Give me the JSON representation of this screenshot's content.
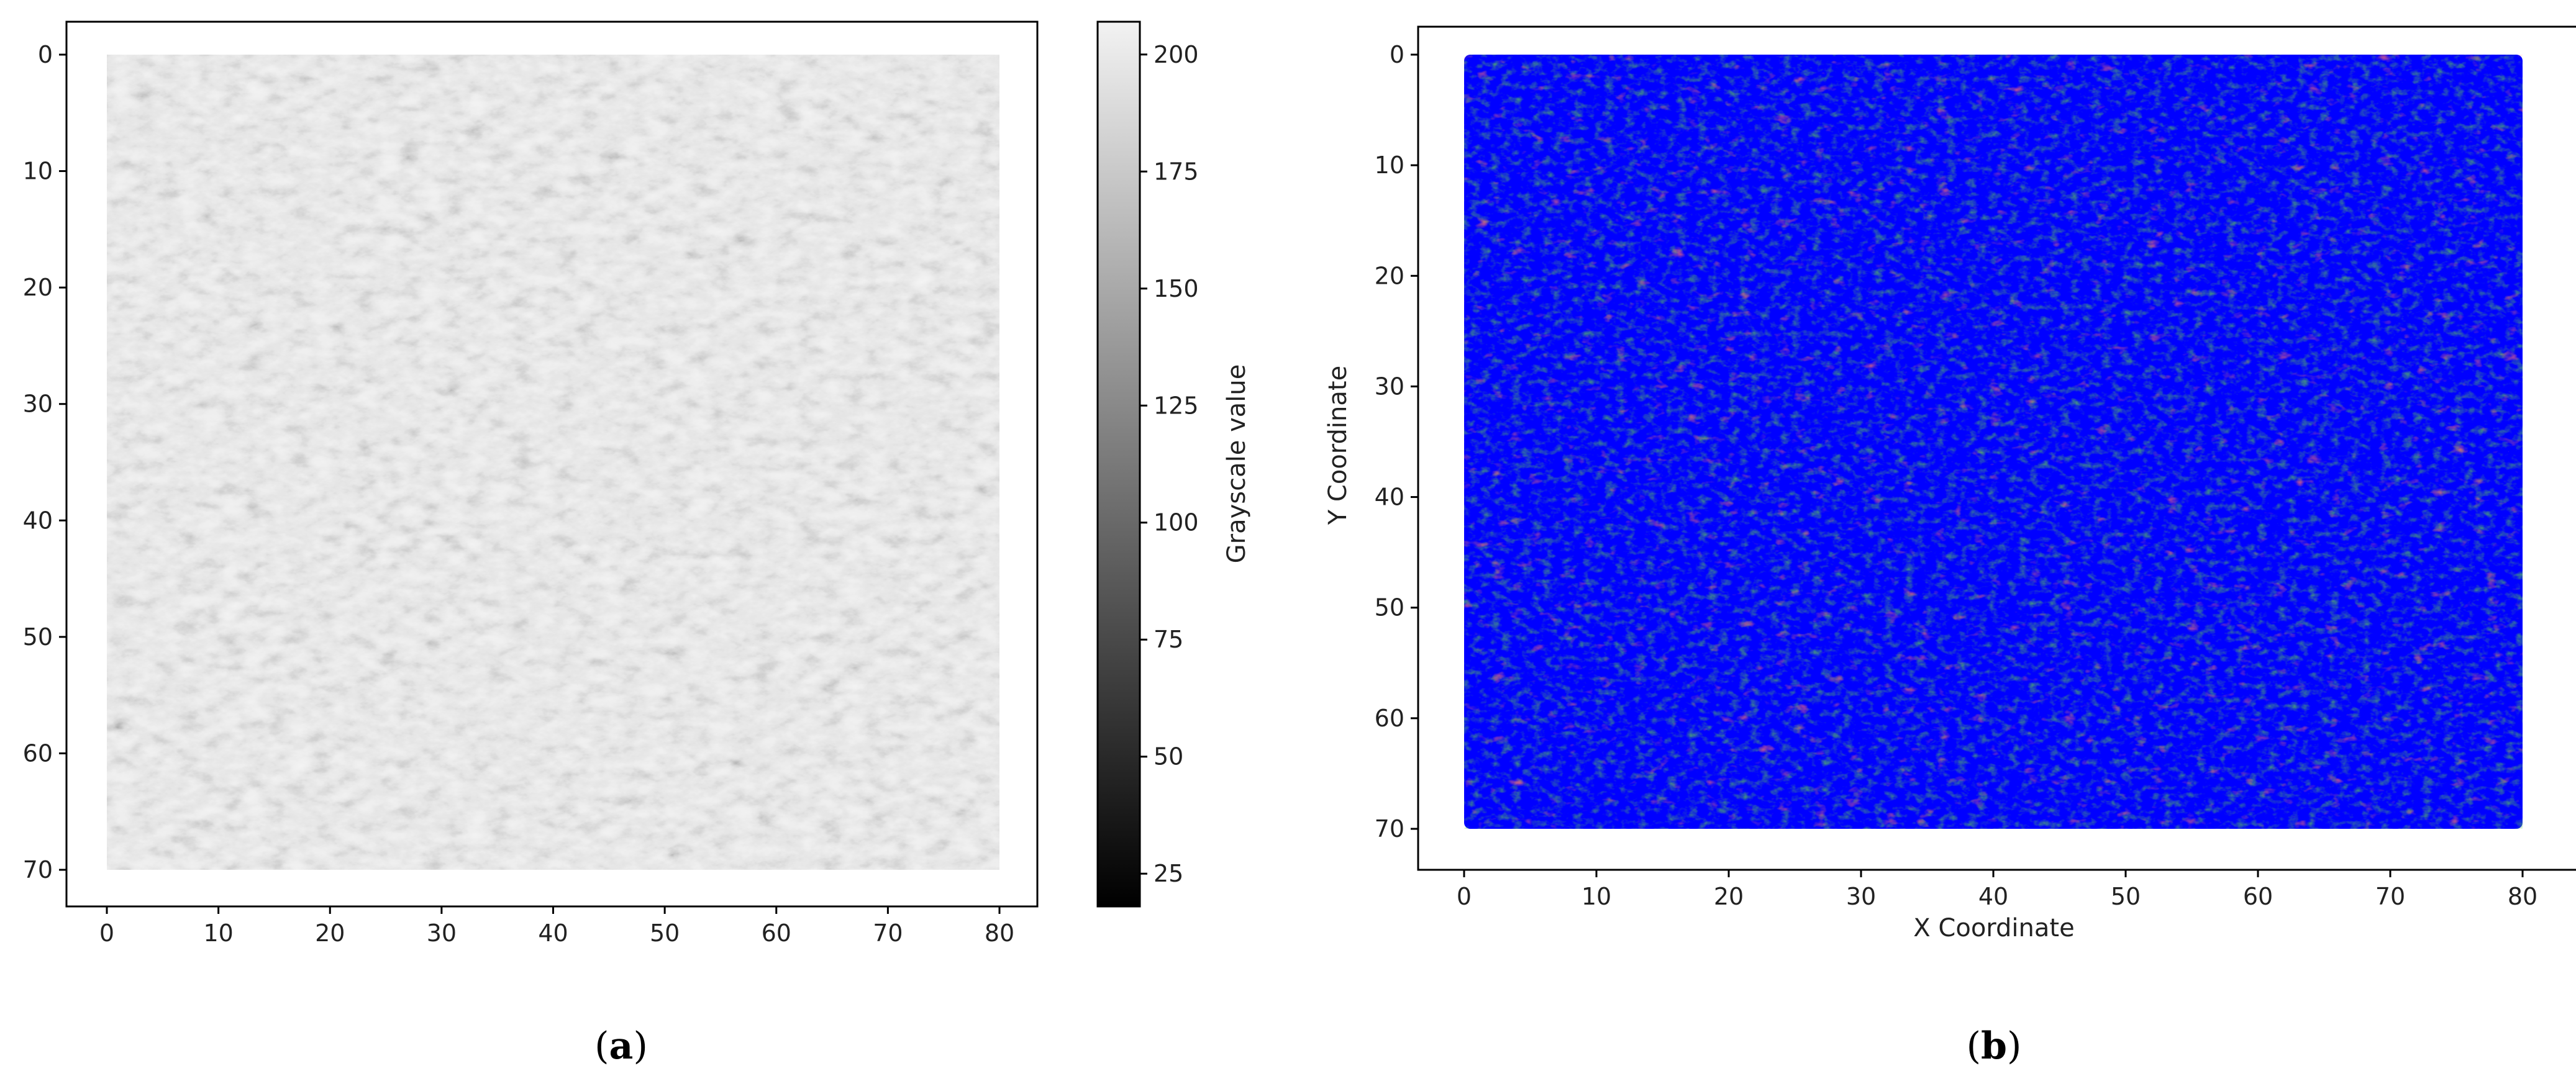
{
  "chart_data": [
    {
      "type": "heatmap",
      "panel": "(a)",
      "panel_letter": "a",
      "description_colormap": "gray",
      "x_range": [
        0,
        80
      ],
      "y_range": [
        0,
        70
      ],
      "y_inverted": true,
      "xticks": [
        0,
        10,
        20,
        30,
        40,
        50,
        60,
        70,
        80
      ],
      "yticks": [
        0,
        10,
        20,
        30,
        40,
        50,
        60,
        70
      ],
      "colorbar": {
        "label": "Grayscale value",
        "range": [
          18,
          207
        ],
        "ticks": [
          25,
          50,
          75,
          100,
          125,
          150,
          175,
          200
        ]
      }
    },
    {
      "type": "scatter",
      "panel": "(b)",
      "panel_letter": "b",
      "xlabel": "X Coordinate",
      "ylabel": "Y Coordinate",
      "x_range": [
        0,
        80
      ],
      "y_range": [
        0,
        70
      ],
      "y_inverted": true,
      "xticks": [
        0,
        10,
        20,
        30,
        40,
        50,
        60,
        70,
        80
      ],
      "yticks": [
        0,
        10,
        20,
        30,
        40,
        50,
        60,
        70
      ],
      "colors": {
        "dominant": "#0000ff",
        "secondary": "#1a8a1a",
        "minor": "#ff2a2a"
      }
    }
  ]
}
